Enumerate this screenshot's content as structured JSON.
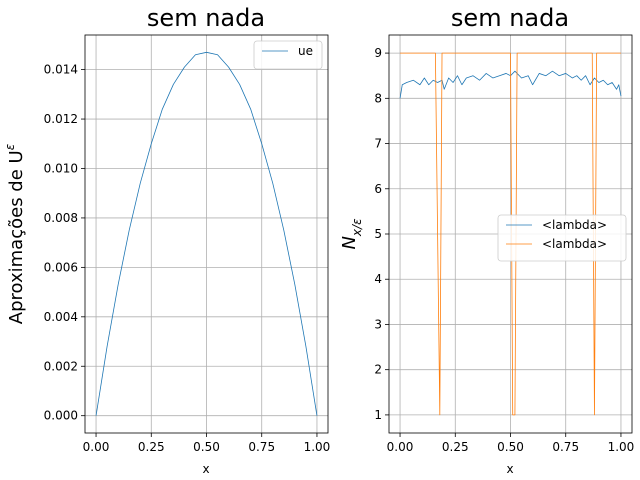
{
  "chart_data": [
    {
      "type": "line",
      "title": "sem nada",
      "xlabel": "x",
      "ylabel": "Aproximações de U^ε",
      "ylabel_main": "Aproximações de U",
      "ylabel_sup": "ε",
      "xlim": [
        -0.05,
        1.05
      ],
      "ylim": [
        -0.0007,
        0.0154
      ],
      "xticks": [
        0.0,
        0.25,
        0.5,
        0.75,
        1.0
      ],
      "xtick_labels": [
        "0.00",
        "0.25",
        "0.50",
        "0.75",
        "1.00"
      ],
      "yticks": [
        0.0,
        0.002,
        0.004,
        0.006,
        0.008,
        0.01,
        0.012,
        0.014
      ],
      "ytick_labels": [
        "0.000",
        "0.002",
        "0.004",
        "0.006",
        "0.008",
        "0.010",
        "0.012",
        "0.014"
      ],
      "grid": true,
      "legend_position": "top-right",
      "series": [
        {
          "name": "ue",
          "color": "#1f77b4",
          "x": [
            0.0,
            0.05,
            0.1,
            0.15,
            0.2,
            0.25,
            0.3,
            0.35,
            0.4,
            0.45,
            0.5,
            0.55,
            0.6,
            0.65,
            0.7,
            0.75,
            0.8,
            0.85,
            0.9,
            0.95,
            1.0
          ],
          "y": [
            0.0,
            0.0028,
            0.0053,
            0.0075,
            0.0094,
            0.011,
            0.0124,
            0.0134,
            0.0141,
            0.0146,
            0.0147,
            0.0146,
            0.0141,
            0.0134,
            0.0124,
            0.011,
            0.0094,
            0.0075,
            0.0053,
            0.0028,
            0.0
          ]
        }
      ]
    },
    {
      "type": "line",
      "title": "sem nada",
      "xlabel": "x",
      "ylabel": "N_{x/ε}",
      "ylabel_main": "N",
      "ylabel_sub": "x/ε",
      "xlim": [
        -0.05,
        1.05
      ],
      "ylim": [
        0.6,
        9.4
      ],
      "xticks": [
        0.0,
        0.25,
        0.5,
        0.75,
        1.0
      ],
      "xtick_labels": [
        "0.00",
        "0.25",
        "0.50",
        "0.75",
        "1.00"
      ],
      "yticks": [
        1,
        2,
        3,
        4,
        5,
        6,
        7,
        8,
        9
      ],
      "ytick_labels": [
        "1",
        "2",
        "3",
        "4",
        "5",
        "6",
        "7",
        "8",
        "9"
      ],
      "grid": true,
      "legend_position": "center-right",
      "series": [
        {
          "name": "<lambda>",
          "color": "#1f77b4",
          "x": [
            0.0,
            0.01,
            0.03,
            0.06,
            0.09,
            0.11,
            0.13,
            0.15,
            0.17,
            0.19,
            0.2,
            0.22,
            0.24,
            0.26,
            0.28,
            0.3,
            0.33,
            0.36,
            0.39,
            0.42,
            0.45,
            0.48,
            0.5,
            0.52,
            0.55,
            0.58,
            0.6,
            0.63,
            0.66,
            0.69,
            0.72,
            0.75,
            0.78,
            0.8,
            0.82,
            0.84,
            0.86,
            0.88,
            0.9,
            0.92,
            0.94,
            0.96,
            0.98,
            0.99,
            1.0
          ],
          "y": [
            8.0,
            8.3,
            8.35,
            8.4,
            8.3,
            8.45,
            8.3,
            8.4,
            8.35,
            8.4,
            8.2,
            8.45,
            8.35,
            8.5,
            8.3,
            8.45,
            8.5,
            8.4,
            8.55,
            8.45,
            8.5,
            8.55,
            8.5,
            8.6,
            8.45,
            8.5,
            8.3,
            8.55,
            8.5,
            8.6,
            8.5,
            8.55,
            8.45,
            8.5,
            8.4,
            8.5,
            8.3,
            8.45,
            8.35,
            8.4,
            8.3,
            8.35,
            8.2,
            8.3,
            8.05
          ]
        },
        {
          "name": "<lambda>",
          "color": "#ff7f0e",
          "x": [
            0.0,
            0.16,
            0.17,
            0.18,
            0.19,
            0.2,
            0.495,
            0.5,
            0.51,
            0.52,
            0.53,
            0.54,
            0.86,
            0.87,
            0.88,
            0.89,
            1.0
          ],
          "y": [
            9,
            9,
            5,
            1,
            9,
            9,
            9,
            9,
            1,
            1,
            9,
            9,
            9,
            9,
            1,
            9,
            9
          ]
        }
      ]
    }
  ]
}
